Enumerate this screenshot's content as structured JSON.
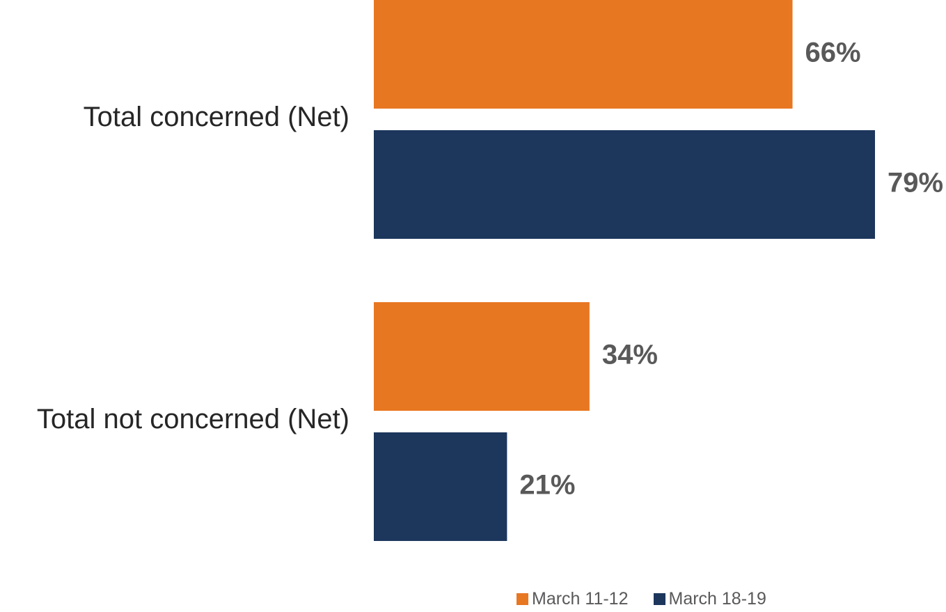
{
  "chart_data": {
    "type": "bar",
    "orientation": "horizontal",
    "categories": [
      "Total concerned (Net)",
      "Total not concerned (Net)"
    ],
    "series": [
      {
        "name": "March 11-12",
        "values": [
          66,
          34
        ],
        "labels": [
          "66%",
          "34%"
        ],
        "color": "#E87722"
      },
      {
        "name": "March 18-19",
        "values": [
          79,
          21
        ],
        "labels": [
          "79%",
          "21%"
        ],
        "color": "#1C365C"
      }
    ],
    "value_unit": "%",
    "xlim": [
      0,
      100
    ],
    "grid": false,
    "legend": "bottom"
  }
}
